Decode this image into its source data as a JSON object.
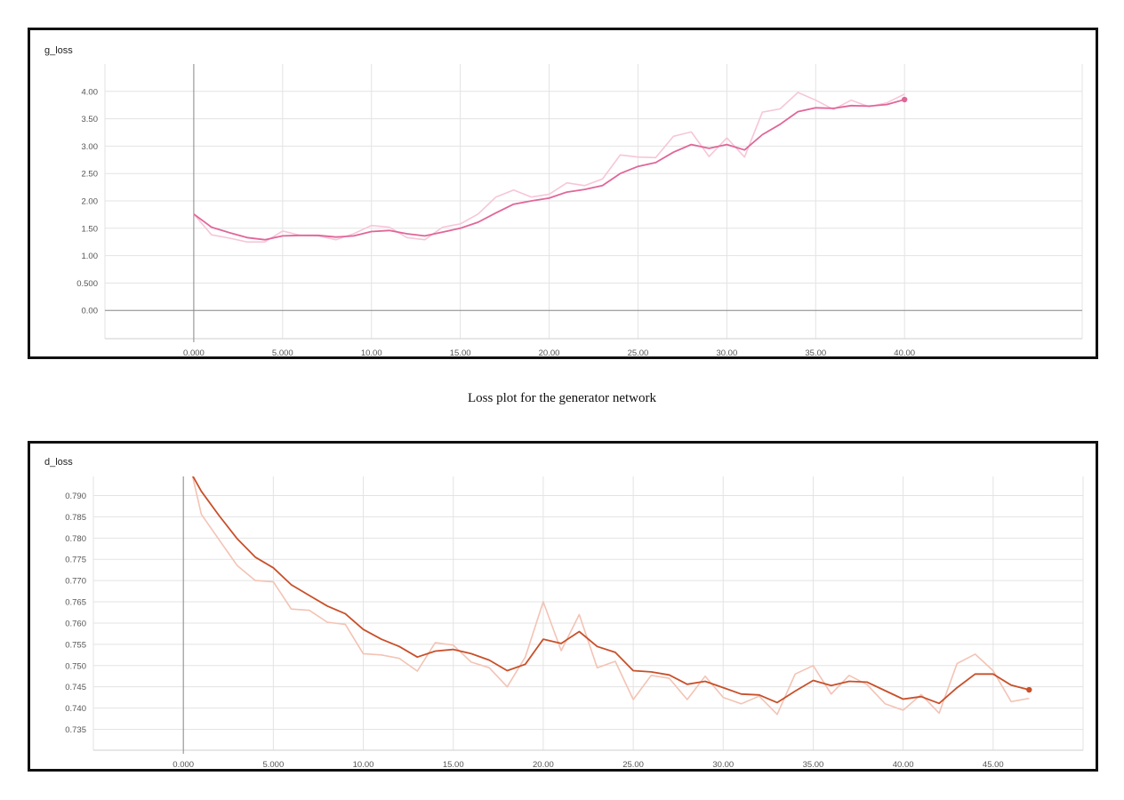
{
  "caption": "Loss plot for the generator network",
  "chart_data": [
    {
      "type": "line",
      "title": "g_loss",
      "xlabel": "",
      "ylabel": "",
      "xlim": [
        -5,
        50
      ],
      "ylim": [
        -0.5,
        4.5
      ],
      "grid": true,
      "x_ticks": [
        "0.000",
        "5.000",
        "10.00",
        "15.00",
        "20.00",
        "25.00",
        "30.00",
        "35.00",
        "40.00"
      ],
      "y_ticks": [
        "0.00",
        "0.500",
        "1.00",
        "1.50",
        "2.00",
        "2.50",
        "3.00",
        "3.50",
        "4.00"
      ],
      "x_tick_values": [
        0,
        5,
        10,
        15,
        20,
        25,
        30,
        35,
        40
      ],
      "y_tick_values": [
        0,
        0.5,
        1,
        1.5,
        2,
        2.5,
        3,
        3.5,
        4
      ],
      "colors": {
        "smoothed": "#e0669a",
        "raw": "#f6c6d8"
      },
      "series": [
        {
          "x": [
            0,
            1,
            2,
            3,
            4,
            5,
            6,
            7,
            8,
            9,
            10,
            11,
            12,
            13,
            14,
            15,
            16,
            17,
            18,
            19,
            20,
            21,
            22,
            23,
            24,
            25,
            26,
            27,
            28,
            29,
            30,
            31,
            32,
            33,
            34,
            35,
            36,
            37,
            38,
            39,
            40
          ],
          "values": [
            1.76,
            1.52,
            1.42,
            1.33,
            1.29,
            1.36,
            1.37,
            1.37,
            1.34,
            1.36,
            1.44,
            1.46,
            1.4,
            1.36,
            1.43,
            1.5,
            1.61,
            1.78,
            1.94,
            2.0,
            2.05,
            2.16,
            2.21,
            2.28,
            2.5,
            2.63,
            2.7,
            2.89,
            3.03,
            2.96,
            3.03,
            2.93,
            3.21,
            3.4,
            3.63,
            3.7,
            3.69,
            3.74,
            3.73,
            3.76,
            3.85
          ]
        },
        {
          "x": [
            0,
            1,
            2,
            3,
            4,
            5,
            6,
            7,
            8,
            9,
            10,
            11,
            12,
            13,
            14,
            15,
            16,
            17,
            18,
            19,
            20,
            21,
            22,
            23,
            24,
            25,
            26,
            27,
            28,
            29,
            30,
            31,
            32,
            33,
            34,
            35,
            36,
            37,
            38,
            39,
            40
          ],
          "values": [
            1.76,
            1.38,
            1.32,
            1.25,
            1.25,
            1.45,
            1.37,
            1.36,
            1.29,
            1.4,
            1.55,
            1.52,
            1.33,
            1.29,
            1.52,
            1.58,
            1.76,
            2.07,
            2.2,
            2.07,
            2.12,
            2.33,
            2.28,
            2.4,
            2.84,
            2.8,
            2.79,
            3.18,
            3.26,
            2.81,
            3.15,
            2.8,
            3.62,
            3.68,
            3.98,
            3.84,
            3.67,
            3.84,
            3.72,
            3.79,
            3.95
          ]
        }
      ]
    },
    {
      "type": "line",
      "title": "d_loss",
      "xlabel": "",
      "ylabel": "",
      "xlim": [
        -5,
        50
      ],
      "ylim": [
        0.7305,
        0.7945
      ],
      "grid": true,
      "x_ticks": [
        "0.000",
        "5.000",
        "10.00",
        "15.00",
        "20.00",
        "25.00",
        "30.00",
        "35.00",
        "40.00",
        "45.00"
      ],
      "y_ticks": [
        "0.735",
        "0.740",
        "0.745",
        "0.750",
        "0.755",
        "0.760",
        "0.765",
        "0.770",
        "0.775",
        "0.780",
        "0.785",
        "0.790"
      ],
      "x_tick_values": [
        0,
        5,
        10,
        15,
        20,
        25,
        30,
        35,
        40,
        45
      ],
      "y_tick_values": [
        0.735,
        0.74,
        0.745,
        0.75,
        0.755,
        0.76,
        0.765,
        0.77,
        0.775,
        0.78,
        0.785,
        0.79
      ],
      "colors": {
        "smoothed": "#c8502a",
        "raw": "#f3c3b4"
      },
      "series": [
        {
          "x": [
            0.5,
            1,
            2,
            3,
            4,
            5,
            6,
            7,
            8,
            9,
            10,
            11,
            12,
            13,
            14,
            15,
            16,
            17,
            18,
            19,
            20,
            21,
            22,
            23,
            24,
            25,
            26,
            27,
            28,
            29,
            30,
            31,
            32,
            33,
            34,
            35,
            36,
            37,
            38,
            39,
            40,
            41,
            42,
            43,
            44,
            45,
            46,
            47
          ],
          "values": [
            0.7948,
            0.791,
            0.7852,
            0.7798,
            0.7755,
            0.773,
            0.769,
            0.7665,
            0.764,
            0.7622,
            0.7585,
            0.7562,
            0.7545,
            0.752,
            0.7534,
            0.7538,
            0.7528,
            0.7513,
            0.7488,
            0.7503,
            0.7562,
            0.7552,
            0.758,
            0.7545,
            0.7531,
            0.7488,
            0.7485,
            0.7478,
            0.7456,
            0.7463,
            0.7448,
            0.7433,
            0.7431,
            0.7413,
            0.744,
            0.7465,
            0.7453,
            0.7463,
            0.7461,
            0.7441,
            0.7421,
            0.7427,
            0.7411,
            0.7448,
            0.748,
            0.748,
            0.7454,
            0.7443
          ]
        },
        {
          "x": [
            0.5,
            1,
            2,
            3,
            4,
            5,
            6,
            7,
            8,
            9,
            10,
            11,
            12,
            13,
            14,
            15,
            16,
            17,
            18,
            19,
            20,
            21,
            22,
            23,
            24,
            25,
            26,
            27,
            28,
            29,
            30,
            31,
            32,
            33,
            34,
            35,
            36,
            37,
            38,
            39,
            40,
            41,
            42,
            43,
            44,
            45,
            46,
            47
          ],
          "values": [
            0.7948,
            0.7856,
            0.7795,
            0.7735,
            0.77,
            0.7697,
            0.7633,
            0.763,
            0.7602,
            0.7597,
            0.7528,
            0.7525,
            0.7517,
            0.7487,
            0.7554,
            0.7548,
            0.7508,
            0.7495,
            0.745,
            0.752,
            0.765,
            0.7535,
            0.762,
            0.7495,
            0.751,
            0.742,
            0.7477,
            0.747,
            0.742,
            0.7475,
            0.7425,
            0.741,
            0.7428,
            0.7385,
            0.748,
            0.75,
            0.7433,
            0.7477,
            0.7455,
            0.741,
            0.7395,
            0.7432,
            0.7388,
            0.7505,
            0.7527,
            0.7488,
            0.7415,
            0.7423
          ]
        }
      ]
    }
  ]
}
